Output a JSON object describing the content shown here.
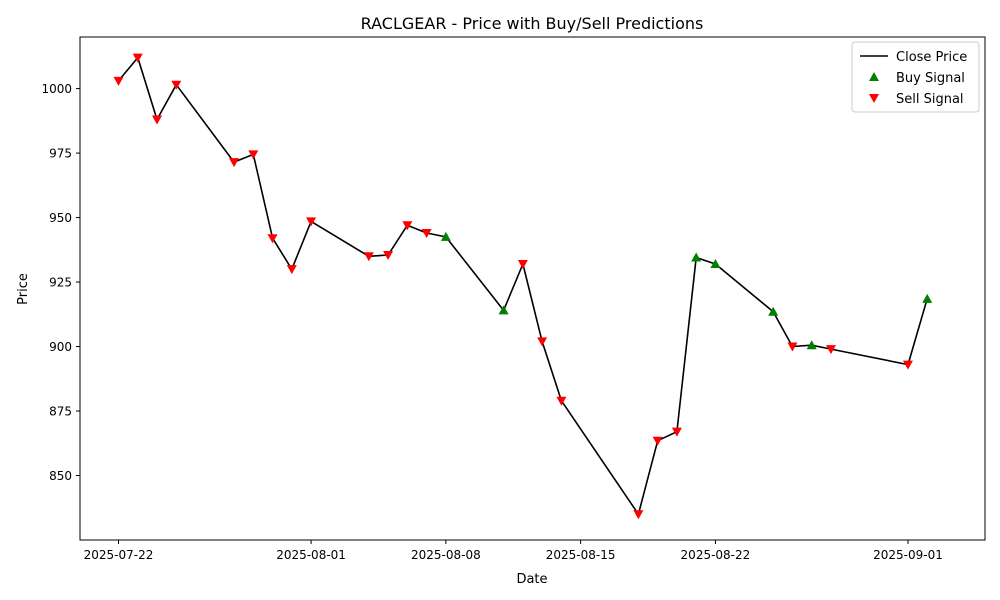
{
  "chart_data": {
    "type": "line",
    "title": "RACLGEAR - Price with Buy/Sell Predictions",
    "xlabel": "Date",
    "ylabel": "Price",
    "ylim": [
      825,
      1020
    ],
    "xlim": [
      "2025-07-20",
      "2025-09-05"
    ],
    "x_ticks": [
      "2025-07-22",
      "2025-08-01",
      "2025-08-08",
      "2025-08-15",
      "2025-08-22",
      "2025-09-01"
    ],
    "y_ticks": [
      850,
      875,
      900,
      925,
      950,
      975,
      1000
    ],
    "grid": false,
    "legend_position": "top-right",
    "legend": [
      "Close Price",
      "Buy Signal",
      "Sell Signal"
    ],
    "colors": {
      "line": "#000000",
      "buy": "#008000",
      "sell": "#ff0000"
    },
    "series": [
      {
        "name": "Close Price",
        "points": [
          {
            "date": "2025-07-22",
            "price": 1003,
            "signal": "sell"
          },
          {
            "date": "2025-07-23",
            "price": 1012,
            "signal": "sell"
          },
          {
            "date": "2025-07-24",
            "price": 988,
            "signal": "sell"
          },
          {
            "date": "2025-07-25",
            "price": 1001.5,
            "signal": "sell"
          },
          {
            "date": "2025-07-28",
            "price": 971.5,
            "signal": "sell"
          },
          {
            "date": "2025-07-29",
            "price": 974.5,
            "signal": "sell"
          },
          {
            "date": "2025-07-30",
            "price": 942,
            "signal": "sell"
          },
          {
            "date": "2025-07-31",
            "price": 930,
            "signal": "sell"
          },
          {
            "date": "2025-08-01",
            "price": 948.5,
            "signal": "sell"
          },
          {
            "date": "2025-08-04",
            "price": 935,
            "signal": "sell"
          },
          {
            "date": "2025-08-05",
            "price": 935.5,
            "signal": "sell"
          },
          {
            "date": "2025-08-06",
            "price": 947,
            "signal": "sell"
          },
          {
            "date": "2025-08-07",
            "price": 944,
            "signal": "sell"
          },
          {
            "date": "2025-08-08",
            "price": 942.5,
            "signal": "buy"
          },
          {
            "date": "2025-08-11",
            "price": 914,
            "signal": "buy"
          },
          {
            "date": "2025-08-12",
            "price": 932,
            "signal": "sell"
          },
          {
            "date": "2025-08-13",
            "price": 902,
            "signal": "sell"
          },
          {
            "date": "2025-08-14",
            "price": 879,
            "signal": "sell"
          },
          {
            "date": "2025-08-18",
            "price": 835,
            "signal": "sell"
          },
          {
            "date": "2025-08-19",
            "price": 863.5,
            "signal": "sell"
          },
          {
            "date": "2025-08-20",
            "price": 867,
            "signal": "sell"
          },
          {
            "date": "2025-08-21",
            "price": 934.5,
            "signal": "buy"
          },
          {
            "date": "2025-08-22",
            "price": 932,
            "signal": "buy"
          },
          {
            "date": "2025-08-25",
            "price": 913.5,
            "signal": "buy"
          },
          {
            "date": "2025-08-26",
            "price": 900,
            "signal": "sell"
          },
          {
            "date": "2025-08-27",
            "price": 900.5,
            "signal": "buy"
          },
          {
            "date": "2025-08-28",
            "price": 899,
            "signal": "sell"
          },
          {
            "date": "2025-09-01",
            "price": 893,
            "signal": "sell"
          },
          {
            "date": "2025-09-02",
            "price": 918.5,
            "signal": "buy"
          }
        ]
      }
    ]
  }
}
